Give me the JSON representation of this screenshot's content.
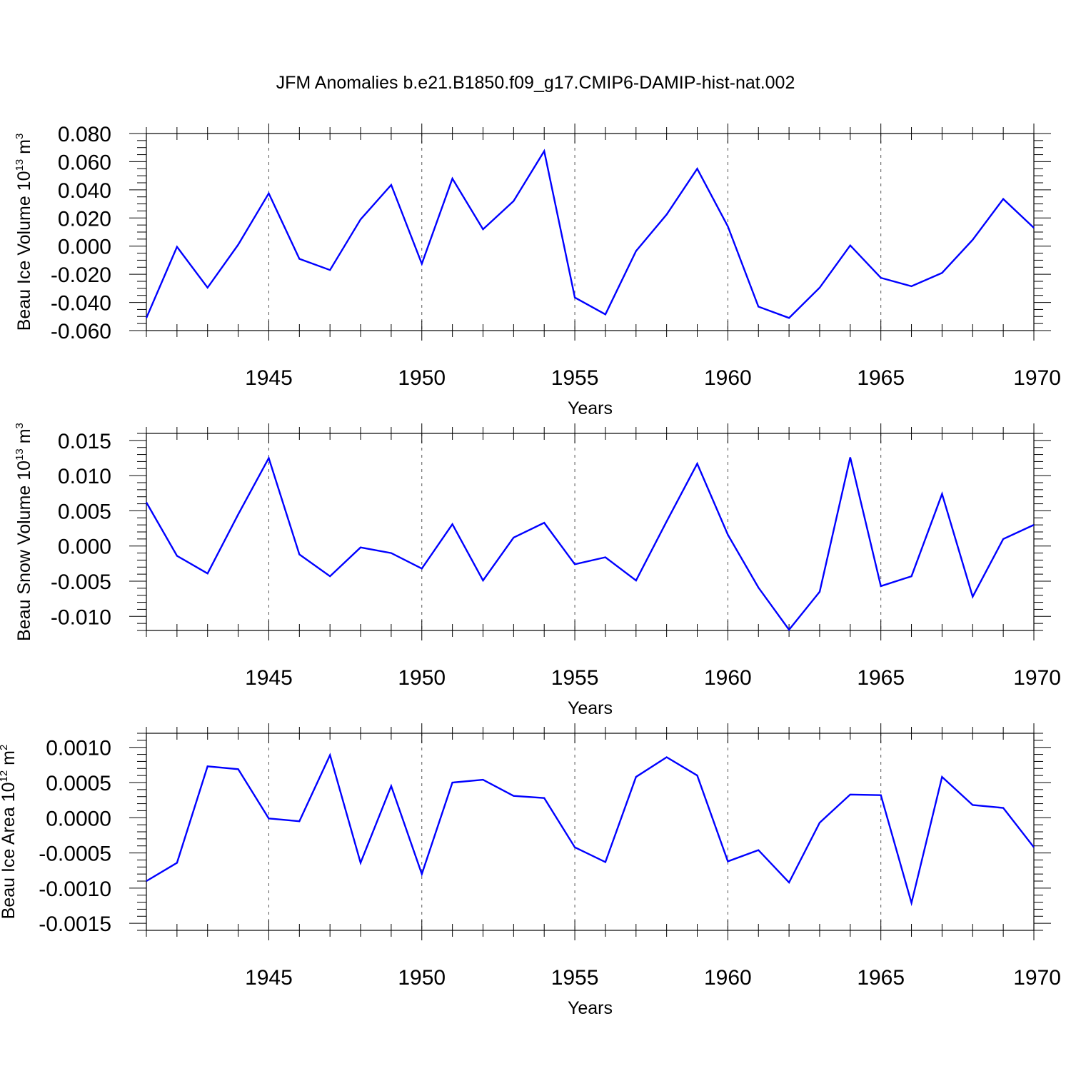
{
  "chart_data": [
    {
      "type": "line",
      "title": "JFM Anomalies b.e21.B1850.f09_g17.CMIP6-DAMIP-hist-nat.002",
      "ylabel": "Beau Ice Volume 10",
      "ylabel_exp": "13",
      "ylabel_unit": " m",
      "ylabel_unit_exp": "3",
      "xlabel": "Years",
      "xlim": [
        1941,
        1970
      ],
      "ylim": [
        -0.06,
        0.08
      ],
      "yticks": [
        -0.06,
        -0.04,
        -0.02,
        0.0,
        0.02,
        0.04,
        0.06,
        0.08
      ],
      "ytick_labels": [
        "-0.060",
        "-0.040",
        "-0.020",
        "0.000",
        "0.020",
        "0.040",
        "0.060",
        "0.080"
      ],
      "yminor_step": 0.005,
      "xticks": [
        1945,
        1950,
        1955,
        1960,
        1965,
        1970
      ],
      "xtick_labels": [
        "1945",
        "1950",
        "1955",
        "1960",
        "1965",
        "1970"
      ],
      "grid": "vertical dashed at major x ticks",
      "series": [
        {
          "name": "Beau Ice Volume",
          "color": "#0000ff",
          "x": [
            1941,
            1942,
            1943,
            1944,
            1945,
            1946,
            1947,
            1948,
            1949,
            1950,
            1951,
            1952,
            1953,
            1954,
            1955,
            1956,
            1957,
            1958,
            1959,
            1960,
            1961,
            1962,
            1963,
            1964,
            1965,
            1966,
            1967,
            1968,
            1969,
            1970
          ],
          "values": [
            -0.051,
            -0.0005,
            -0.0295,
            0.001,
            0.0375,
            -0.009,
            -0.017,
            0.019,
            0.0435,
            -0.0125,
            0.048,
            0.012,
            0.032,
            0.0675,
            -0.0365,
            -0.0485,
            -0.0035,
            0.0225,
            0.055,
            0.014,
            -0.043,
            -0.051,
            -0.0295,
            0.0005,
            -0.0225,
            -0.0285,
            -0.019,
            0.0045,
            0.0335,
            0.013
          ]
        }
      ]
    },
    {
      "type": "line",
      "ylabel": "Beau Snow Volume 10",
      "ylabel_exp": "13",
      "ylabel_unit": " m",
      "ylabel_unit_exp": "3",
      "xlabel": "Years",
      "xlim": [
        1941,
        1970
      ],
      "ylim": [
        -0.012,
        0.016
      ],
      "yticks": [
        -0.01,
        -0.005,
        0.0,
        0.005,
        0.01,
        0.015
      ],
      "ytick_labels": [
        "-0.010",
        "-0.005",
        "0.000",
        "0.005",
        "0.010",
        "0.015"
      ],
      "yminor_step": 0.001,
      "xticks": [
        1945,
        1950,
        1955,
        1960,
        1965,
        1970
      ],
      "xtick_labels": [
        "1945",
        "1950",
        "1955",
        "1960",
        "1965",
        "1970"
      ],
      "grid": "vertical dashed at major x ticks",
      "series": [
        {
          "name": "Beau Snow Volume",
          "color": "#0000ff",
          "x": [
            1941,
            1942,
            1943,
            1944,
            1945,
            1946,
            1947,
            1948,
            1949,
            1950,
            1951,
            1952,
            1953,
            1954,
            1955,
            1956,
            1957,
            1958,
            1959,
            1960,
            1961,
            1962,
            1963,
            1964,
            1965,
            1966,
            1967,
            1968,
            1969,
            1970
          ],
          "values": [
            0.0062,
            -0.0014,
            -0.0039,
            0.0045,
            0.0125,
            -0.0012,
            -0.0043,
            -0.0002,
            -0.001,
            -0.0032,
            0.0031,
            -0.0049,
            0.0012,
            0.0033,
            -0.0026,
            -0.0016,
            -0.0049,
            0.0035,
            0.0117,
            0.0016,
            -0.0059,
            -0.0119,
            -0.0065,
            0.0126,
            -0.0057,
            -0.0043,
            0.0074,
            -0.0072,
            0.001,
            0.003
          ]
        }
      ]
    },
    {
      "type": "line",
      "ylabel": "Beau Ice Area 10",
      "ylabel_exp": "12",
      "ylabel_unit": " m",
      "ylabel_unit_exp": "2",
      "xlabel": "Years",
      "xlim": [
        1941,
        1970
      ],
      "ylim": [
        -0.0016,
        0.0012
      ],
      "yticks": [
        -0.0015,
        -0.001,
        -0.0005,
        0.0,
        0.0005,
        0.001
      ],
      "ytick_labels": [
        "-0.0015",
        "-0.0010",
        "-0.0005",
        "0.0000",
        "0.0005",
        "0.0010"
      ],
      "yminor_step": 0.0001,
      "xticks": [
        1945,
        1950,
        1955,
        1960,
        1965,
        1970
      ],
      "xtick_labels": [
        "1945",
        "1950",
        "1955",
        "1960",
        "1965",
        "1970"
      ],
      "grid": "vertical dashed at major x ticks",
      "series": [
        {
          "name": "Beau Ice Area",
          "color": "#0000ff",
          "x": [
            1941,
            1942,
            1943,
            1944,
            1945,
            1946,
            1947,
            1948,
            1949,
            1950,
            1951,
            1952,
            1953,
            1954,
            1955,
            1956,
            1957,
            1958,
            1959,
            1960,
            1961,
            1962,
            1963,
            1964,
            1965,
            1966,
            1967,
            1968,
            1969,
            1970
          ],
          "values": [
            -0.0009,
            -0.00064,
            0.00073,
            0.00069,
            -1e-05,
            -5e-05,
            0.00089,
            -0.00064,
            0.00045,
            -0.0008,
            0.0005,
            0.00054,
            0.00031,
            0.00028,
            -0.00042,
            -0.00063,
            0.00058,
            0.00086,
            0.0006,
            -0.00062,
            -0.00046,
            -0.00092,
            -7e-05,
            0.00033,
            0.00032,
            -0.00121,
            0.00058,
            0.00018,
            0.00014,
            -0.00042
          ]
        }
      ]
    }
  ]
}
